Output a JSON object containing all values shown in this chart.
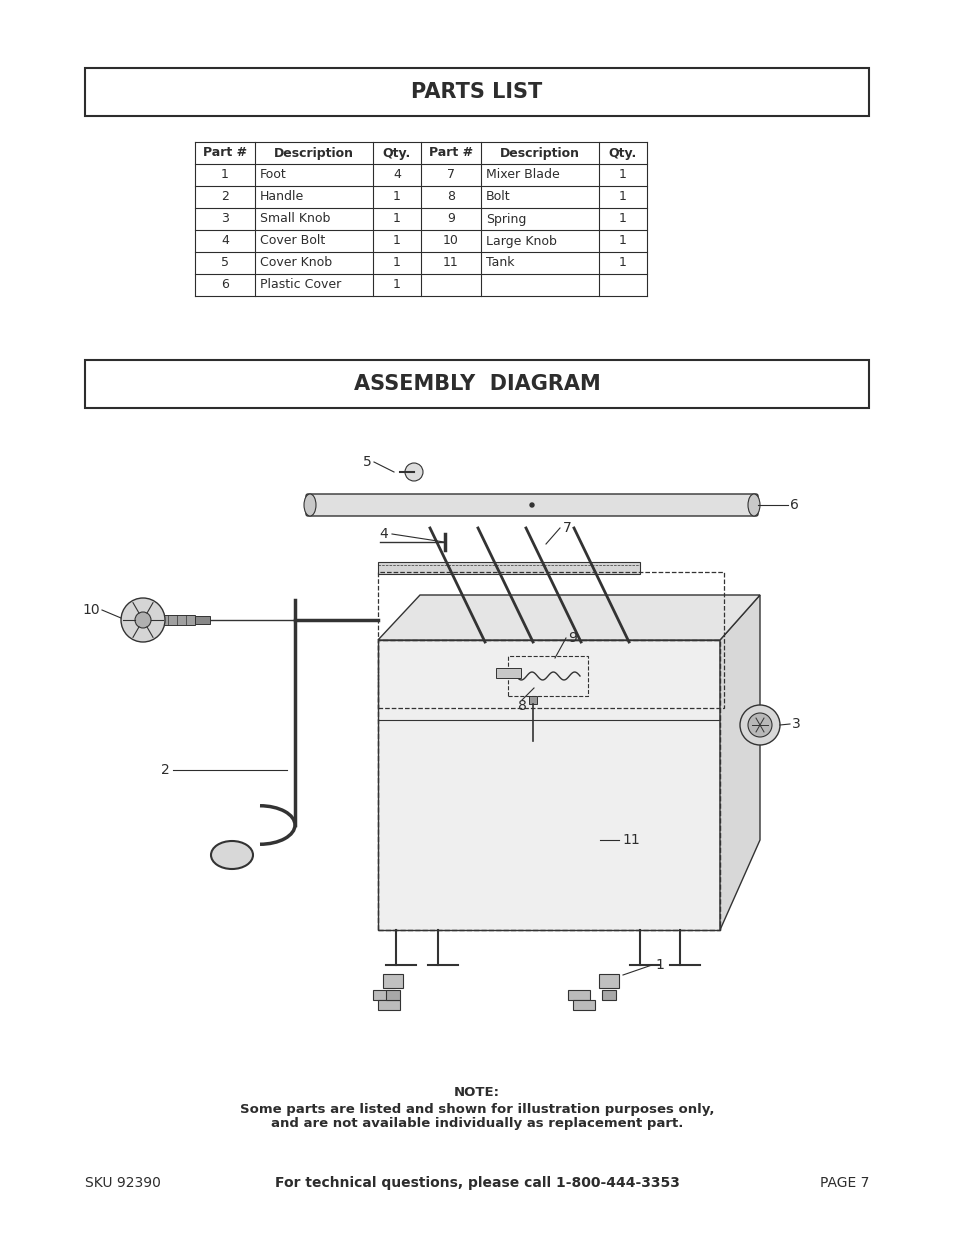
{
  "page_bg": "#ffffff",
  "text_color": "#2d2d2d",
  "parts_list_title": "PARTS LIST",
  "assembly_diagram_title": "ASSEMBLY  DIAGRAM",
  "table_headers": [
    "Part #",
    "Description",
    "Qty.",
    "Part #",
    "Description",
    "Qty."
  ],
  "table_rows": [
    [
      "1",
      "Foot",
      "4",
      "7",
      "Mixer Blade",
      "1"
    ],
    [
      "2",
      "Handle",
      "1",
      "8",
      "Bolt",
      "1"
    ],
    [
      "3",
      "Small Knob",
      "1",
      "9",
      "Spring",
      "1"
    ],
    [
      "4",
      "Cover Bolt",
      "1",
      "10",
      "Large Knob",
      "1"
    ],
    [
      "5",
      "Cover Knob",
      "1",
      "11",
      "Tank",
      "1"
    ],
    [
      "6",
      "Plastic Cover",
      "1",
      "",
      "",
      ""
    ]
  ],
  "note_line1": "NOTE:",
  "note_line2": "Some parts are listed and shown for illustration purposes only,",
  "note_line3": "and are not available individually as replacement part.",
  "footer_left": "SKU 92390",
  "footer_center": "For technical questions, please call 1-800-444-3353",
  "footer_right": "PAGE 7"
}
